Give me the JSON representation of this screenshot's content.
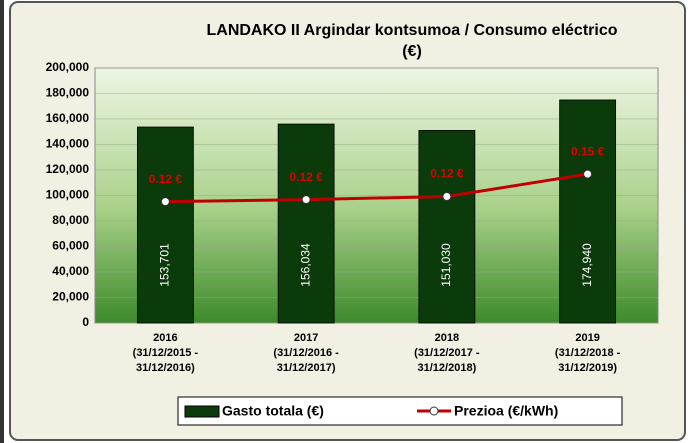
{
  "chart_data": {
    "type": "bar",
    "title": [
      "LANDAKO II Argindar kontsumoa / Consumo eléctrico",
      "(€)"
    ],
    "categories": [
      [
        "2016",
        "(31/12/2015 -",
        "31/12/2016)"
      ],
      [
        "2017",
        "(31/12/2016 -",
        "31/12/2017)"
      ],
      [
        "2018",
        "(31/12/2017 -",
        "31/12/2018)"
      ],
      [
        "2019",
        "(31/12/2018 -",
        "31/12/2019)"
      ]
    ],
    "series": [
      {
        "name": "Gasto totala (€)",
        "type": "bar",
        "color": "#0b3a0b",
        "values": [
          153701,
          156034,
          151030,
          174940
        ],
        "value_labels": [
          "153,701",
          "156,034",
          "151,030",
          "174,940"
        ]
      },
      {
        "name": "Prezioa (€/kWh)",
        "type": "line",
        "axis": "y2",
        "color": "#c00000",
        "values": [
          0.119,
          0.121,
          0.124,
          0.146
        ],
        "value_labels": [
          "0.12 €",
          "0.12 €",
          "0.12 €",
          "0.15 €"
        ]
      }
    ],
    "ylim": [
      0,
      200000
    ],
    "yticks": [
      0,
      {
        "value": 20000,
        "label": "20,000"
      },
      {
        "value": 40000,
        "label": "40,000"
      },
      {
        "value": 60000,
        "label": "60,000"
      },
      {
        "value": 80000,
        "label": "80,000"
      },
      {
        "value": 100000,
        "label": "100,000"
      },
      {
        "value": 120000,
        "label": "120,000"
      },
      {
        "value": 140000,
        "label": "140,000"
      },
      {
        "value": 160000,
        "label": "160,000"
      },
      {
        "value": 180000,
        "label": "180,000"
      },
      {
        "value": 200000,
        "label": "200,000"
      }
    ],
    "y2lim": [
      0,
      0.25
    ],
    "grid": true,
    "legend": "bottom"
  }
}
